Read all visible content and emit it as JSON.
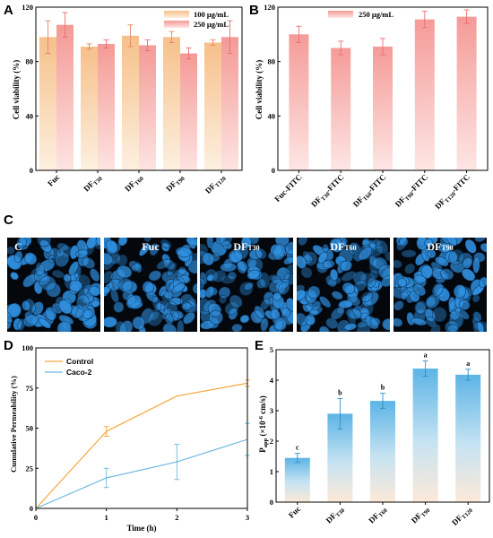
{
  "panels": {
    "A": {
      "letter": "A",
      "ylabel": "Cell viability (%)",
      "legend": [
        "100 μg/mL",
        "250 μg/mL"
      ]
    },
    "B": {
      "letter": "B",
      "ylabel": "Cell viability (%)",
      "legend": [
        "250 μg/mL"
      ]
    },
    "C": {
      "letter": "C",
      "images": [
        {
          "label": "C",
          "sub": ""
        },
        {
          "label": "Fuc",
          "sub": ""
        },
        {
          "label": "DF",
          "sub": "T30"
        },
        {
          "label": "DF",
          "sub": "T60"
        },
        {
          "label": "DF",
          "sub": "T90"
        }
      ]
    },
    "D": {
      "letter": "D",
      "ylabel": "Cumulative Permeability (%)",
      "xlabel": "Time (h)",
      "legend": [
        "Control",
        "Caco-2"
      ]
    },
    "E": {
      "letter": "E",
      "ylabel": "P",
      "ylabel_sub": "app",
      "ylabel_rest": " (×10",
      "ylabel_sup": "-6",
      "ylabel_end": " cm/s)"
    }
  },
  "colors": {
    "peach": "#f9c79c",
    "salmon": "#f79c9a",
    "pink": "#f7a8a8",
    "orange": "#f5a63c",
    "blue": "#6fb8df",
    "cell": "#2f8fde"
  },
  "chart_data": [
    {
      "panel": "A",
      "type": "bar",
      "categories": [
        {
          "main": "Fuc",
          "sub": ""
        },
        {
          "main": "DF",
          "sub": "T30"
        },
        {
          "main": "DF",
          "sub": "T60"
        },
        {
          "main": "DF",
          "sub": "T90"
        },
        {
          "main": "DF",
          "sub": "T120"
        }
      ],
      "series": [
        {
          "name": "100 μg/mL",
          "values": [
            98,
            91,
            99,
            98,
            94
          ],
          "errors": [
            12,
            2,
            8,
            4,
            2
          ]
        },
        {
          "name": "250 μg/mL",
          "values": [
            107,
            93,
            92,
            86,
            98
          ],
          "errors": [
            9,
            3,
            4,
            4,
            12
          ]
        }
      ],
      "ylabel": "Cell viability (%)",
      "ylim": [
        0,
        120
      ],
      "yticks": [
        0,
        40,
        80,
        120
      ]
    },
    {
      "panel": "B",
      "type": "bar",
      "categories": [
        {
          "main": "Fuc-FITC",
          "sub": "",
          "post": ""
        },
        {
          "main": "DF",
          "sub": "T30",
          "post": "-FITC"
        },
        {
          "main": "DF",
          "sub": "T60",
          "post": "-FITC"
        },
        {
          "main": "DF",
          "sub": "T90",
          "post": "-FITC"
        },
        {
          "main": "DF",
          "sub": "T120",
          "post": "-FITC"
        }
      ],
      "series": [
        {
          "name": "250 μg/mL",
          "values": [
            100,
            90,
            91,
            111,
            113
          ],
          "errors": [
            6,
            5,
            6,
            6,
            5
          ]
        }
      ],
      "ylabel": "Cell viability (%)",
      "ylim": [
        0,
        120
      ],
      "yticks": [
        0,
        40,
        80,
        120
      ]
    },
    {
      "panel": "D",
      "type": "line",
      "x": [
        0,
        1,
        2,
        3
      ],
      "series": [
        {
          "name": "Control",
          "values": [
            0,
            48,
            70,
            78
          ],
          "errors": [
            0,
            3,
            0,
            2
          ]
        },
        {
          "name": "Caco-2",
          "values": [
            0,
            19,
            29,
            43
          ],
          "errors": [
            0,
            6,
            11,
            10
          ]
        }
      ],
      "xlabel": "Time (h)",
      "ylabel": "Cumulative Permeability (%)",
      "xlim": [
        0,
        3
      ],
      "ylim": [
        0,
        100
      ],
      "yticks": [
        0,
        25,
        50,
        75,
        100
      ],
      "xticks": [
        0,
        1,
        2,
        3
      ]
    },
    {
      "panel": "E",
      "type": "bar",
      "categories": [
        {
          "main": "Fuc",
          "sub": ""
        },
        {
          "main": "DF",
          "sub": "T30"
        },
        {
          "main": "DF",
          "sub": "T60"
        },
        {
          "main": "DF",
          "sub": "T90"
        },
        {
          "main": "DF",
          "sub": "T120"
        }
      ],
      "values": [
        1.45,
        2.9,
        3.32,
        4.38,
        4.18
      ],
      "errors": [
        0.15,
        0.5,
        0.25,
        0.25,
        0.18
      ],
      "significance": [
        "c",
        "b",
        "b",
        "a",
        "a"
      ],
      "ylim": [
        0,
        5
      ],
      "yticks": [
        0,
        1,
        2,
        3,
        4,
        5
      ]
    }
  ]
}
